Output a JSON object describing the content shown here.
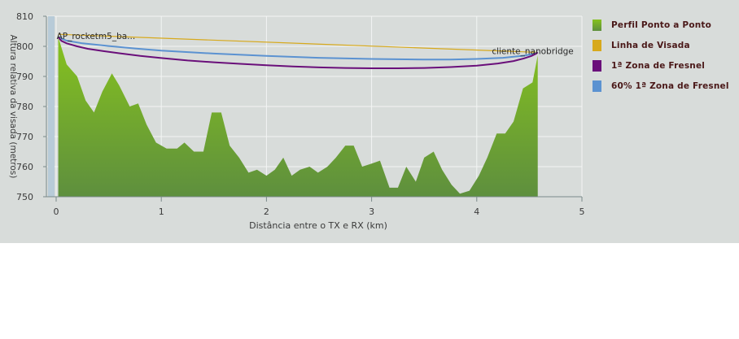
{
  "chart_data": {
    "type": "area",
    "xlabel": "Distância entre o TX e RX (km)",
    "ylabel": "Altura relativa da visada (metros)",
    "xlim": [
      0,
      5
    ],
    "ylim": [
      750,
      810
    ],
    "x_ticks": [
      "0",
      "1",
      "2",
      "3",
      "4",
      "5"
    ],
    "y_ticks": [
      "750",
      "760",
      "770",
      "780",
      "790",
      "800",
      "810"
    ],
    "grid": true,
    "legend_position": "right",
    "endpoints": {
      "tx_label": "AP_rocketm5_ba...",
      "rx_label": "cliente_nanobridge",
      "tx": {
        "x": 0.02,
        "y": 803
      },
      "rx": {
        "x": 4.58,
        "y": 798
      }
    },
    "series": [
      {
        "name": "Perfil Ponto a Ponto",
        "kind": "area",
        "color_top": "#86c21e",
        "color_bottom": "#5e8f3e",
        "points": [
          [
            0.02,
            803
          ],
          [
            0.1,
            794
          ],
          [
            0.2,
            790
          ],
          [
            0.28,
            782
          ],
          [
            0.36,
            778
          ],
          [
            0.44,
            785
          ],
          [
            0.53,
            791
          ],
          [
            0.6,
            787
          ],
          [
            0.7,
            780
          ],
          [
            0.78,
            781
          ],
          [
            0.86,
            774
          ],
          [
            0.95,
            768
          ],
          [
            1.05,
            766
          ],
          [
            1.15,
            766
          ],
          [
            1.22,
            768
          ],
          [
            1.31,
            765
          ],
          [
            1.4,
            765
          ],
          [
            1.48,
            778
          ],
          [
            1.57,
            778
          ],
          [
            1.65,
            767
          ],
          [
            1.74,
            763
          ],
          [
            1.83,
            758
          ],
          [
            1.91,
            759
          ],
          [
            2.0,
            757
          ],
          [
            2.08,
            759
          ],
          [
            2.16,
            763
          ],
          [
            2.24,
            757
          ],
          [
            2.32,
            759
          ],
          [
            2.41,
            760
          ],
          [
            2.49,
            758
          ],
          [
            2.58,
            760
          ],
          [
            2.66,
            763
          ],
          [
            2.75,
            767
          ],
          [
            2.83,
            767
          ],
          [
            2.91,
            760
          ],
          [
            3.0,
            761
          ],
          [
            3.08,
            762
          ],
          [
            3.17,
            753
          ],
          [
            3.25,
            753
          ],
          [
            3.33,
            760
          ],
          [
            3.42,
            755
          ],
          [
            3.5,
            763
          ],
          [
            3.59,
            765
          ],
          [
            3.67,
            759
          ],
          [
            3.76,
            754
          ],
          [
            3.84,
            751
          ],
          [
            3.93,
            752
          ],
          [
            4.02,
            757
          ],
          [
            4.1,
            763
          ],
          [
            4.19,
            771
          ],
          [
            4.27,
            771
          ],
          [
            4.35,
            775
          ],
          [
            4.44,
            786
          ],
          [
            4.53,
            788
          ],
          [
            4.58,
            797
          ]
        ]
      },
      {
        "name": "Linha de Visada",
        "kind": "line",
        "color": "#d7a91c",
        "points": [
          [
            0.02,
            804
          ],
          [
            4.58,
            798
          ]
        ]
      },
      {
        "name": "1ª Zona de Fresnel",
        "kind": "line",
        "color": "#6a0f7a",
        "points": [
          [
            0.02,
            803
          ],
          [
            0.05,
            801.8
          ],
          [
            0.1,
            801
          ],
          [
            0.2,
            800
          ],
          [
            0.3,
            799.2
          ],
          [
            0.45,
            798.4
          ],
          [
            0.6,
            797.7
          ],
          [
            0.8,
            796.8
          ],
          [
            1.0,
            796.1
          ],
          [
            1.25,
            795.3
          ],
          [
            1.5,
            794.7
          ],
          [
            1.75,
            794.2
          ],
          [
            2.0,
            793.7
          ],
          [
            2.25,
            793.3
          ],
          [
            2.5,
            793.0
          ],
          [
            2.75,
            792.8
          ],
          [
            3.0,
            792.7
          ],
          [
            3.25,
            792.7
          ],
          [
            3.5,
            792.8
          ],
          [
            3.75,
            793.1
          ],
          [
            4.0,
            793.6
          ],
          [
            4.2,
            794.3
          ],
          [
            4.35,
            795.1
          ],
          [
            4.45,
            796.0
          ],
          [
            4.52,
            796.8
          ],
          [
            4.56,
            797.5
          ],
          [
            4.58,
            798
          ]
        ]
      },
      {
        "name": "60% 1ª Zona de Fresnel",
        "kind": "line",
        "color": "#5b92d1",
        "points": [
          [
            0.02,
            803
          ],
          [
            0.1,
            801.9
          ],
          [
            0.25,
            801
          ],
          [
            0.5,
            800.1
          ],
          [
            0.75,
            799.3
          ],
          [
            1.0,
            798.6
          ],
          [
            1.5,
            797.6
          ],
          [
            2.0,
            796.8
          ],
          [
            2.5,
            796.2
          ],
          [
            3.0,
            795.8
          ],
          [
            3.5,
            795.6
          ],
          [
            3.75,
            795.6
          ],
          [
            4.0,
            795.8
          ],
          [
            4.25,
            796.2
          ],
          [
            4.45,
            796.9
          ],
          [
            4.55,
            797.6
          ],
          [
            4.58,
            798
          ]
        ]
      }
    ]
  }
}
